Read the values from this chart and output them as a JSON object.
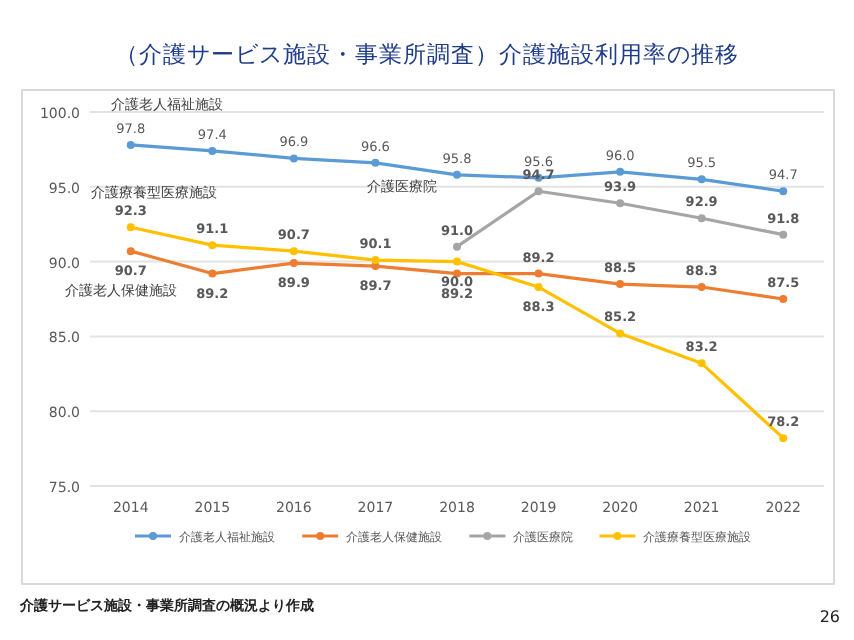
{
  "chart_data": {
    "type": "line",
    "title": "（介護サービス施設・事業所調査）介護施設利用率の推移",
    "categories": [
      "2014",
      "2015",
      "2016",
      "2017",
      "2018",
      "2019",
      "2020",
      "2021",
      "2022"
    ],
    "series": [
      {
        "name": "介護老人福祉施設",
        "color": "#5b9bd5",
        "values": [
          97.8,
          97.4,
          96.9,
          96.6,
          95.8,
          95.6,
          96.0,
          95.5,
          94.7
        ]
      },
      {
        "name": "介護老人保健施設",
        "color": "#ed7d31",
        "values": [
          90.7,
          89.2,
          89.9,
          89.7,
          89.2,
          89.2,
          88.5,
          88.3,
          87.5
        ]
      },
      {
        "name": "介護医療院",
        "color": "#a5a5a5",
        "values": [
          null,
          null,
          null,
          null,
          91.0,
          94.7,
          93.9,
          92.9,
          91.8
        ]
      },
      {
        "name": "介護療養型医療施設",
        "color": "#ffc000",
        "values": [
          92.3,
          91.1,
          90.7,
          90.1,
          90.0,
          88.3,
          85.2,
          83.2,
          78.2
        ]
      }
    ],
    "ylim": [
      75,
      100
    ],
    "yticks": [
      {
        "value": 75,
        "label": "75.0"
      },
      {
        "value": 80,
        "label": "80.0"
      },
      {
        "value": 85,
        "label": "85.0"
      },
      {
        "value": 90,
        "label": "90.0"
      },
      {
        "value": 95,
        "label": "95.0"
      },
      {
        "value": 100,
        "label": "100.0"
      }
    ],
    "grid": "y",
    "legend": "bottom",
    "marker": "circle",
    "line_style": "solid",
    "value_labels": [
      [
        "97.8",
        "97.4",
        "96.9",
        "96.6",
        "95.8",
        "95.6",
        "96.0",
        "95.5",
        "94.7"
      ],
      [
        "90.7",
        "89.2",
        "89.9",
        "89.7",
        "89.2",
        "89.2",
        "88.5",
        "88.3",
        "87.5"
      ],
      [
        null,
        null,
        null,
        null,
        "91.0",
        "94.7",
        "93.9",
        "92.9",
        "91.8"
      ],
      [
        "92.3",
        "91.1",
        "90.7",
        "90.1",
        "90.0",
        "88.3",
        "85.2",
        "83.2",
        "78.2"
      ]
    ],
    "annotations": [
      "介護サービス施設・事業所調査の概況より作成",
      "26"
    ]
  }
}
